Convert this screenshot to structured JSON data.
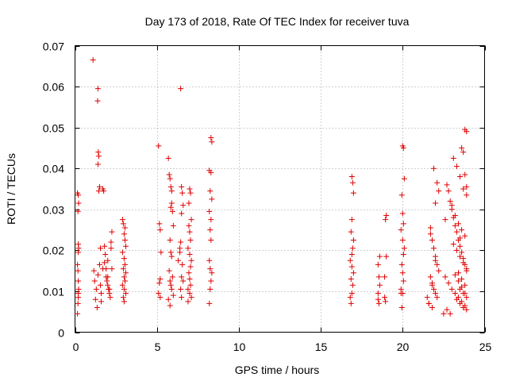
{
  "chart_data": {
    "type": "scatter",
    "title": "Day 173 of 2018, Rate Of TEC Index for receiver tuva",
    "xlabel": "GPS time / hours",
    "ylabel": "ROTI / TECUs",
    "xlim": [
      0,
      25
    ],
    "ylim": [
      0,
      0.07
    ],
    "xticks": [
      0,
      5,
      10,
      15,
      20,
      25
    ],
    "xtick_labels": [
      "0",
      "5",
      "10",
      "15",
      "20",
      "25"
    ],
    "yticks": [
      0,
      0.01,
      0.02,
      0.03,
      0.04,
      0.05,
      0.06,
      0.07
    ],
    "ytick_labels": [
      "0",
      "0.01",
      "0.02",
      "0.03",
      "0.04",
      "0.05",
      "0.06",
      "0.07"
    ],
    "grid": true,
    "marker": "+",
    "marker_color": "#e00000",
    "series": [
      {
        "name": "ROTI",
        "x": [
          0.15,
          0.18,
          0.2,
          0.22,
          0.2,
          0.18,
          0.15,
          0.2,
          0.22,
          0.2,
          0.18,
          0.22,
          0.2,
          0.15,
          0.2,
          1.1,
          1.15,
          1.2,
          1.3,
          1.25,
          1.35,
          1.4,
          1.38,
          1.42,
          1.45,
          1.4,
          1.5,
          1.45,
          1.5,
          1.4,
          1.55,
          1.6,
          1.7,
          1.75,
          1.8,
          1.85,
          1.8,
          1.9,
          2.0,
          1.95,
          2.0,
          2.05,
          2.1,
          2.15,
          2.2,
          2.2,
          2.25,
          2.1,
          1.9,
          1.7,
          1.6,
          1.55,
          2.0,
          2.25,
          2.9,
          2.95,
          3.0,
          3.05,
          3.1,
          2.9,
          3.0,
          3.05,
          2.95,
          3.1,
          3.0,
          3.05,
          2.9,
          3.0,
          3.1,
          2.95,
          3.0,
          3.05,
          5.1,
          5.15,
          5.2,
          5.25,
          5.2,
          5.15,
          5.1,
          5.2,
          5.7,
          5.75,
          5.8,
          5.85,
          5.9,
          5.95,
          6.0,
          5.8,
          5.85,
          5.9,
          5.75,
          5.95,
          5.8,
          5.85,
          5.9,
          6.0,
          5.7,
          5.8,
          5.9,
          5.85,
          6.3,
          6.4,
          6.45,
          6.5,
          6.55,
          6.6,
          6.5,
          6.45,
          6.4,
          6.55,
          6.5,
          6.6,
          6.45,
          6.5,
          6.9,
          6.95,
          7.0,
          7.05,
          7.1,
          6.95,
          7.0,
          7.05,
          6.9,
          7.0,
          7.1,
          7.05,
          6.95,
          7.0,
          7.05,
          6.9,
          7.0,
          7.1,
          8.2,
          8.25,
          8.3,
          8.35,
          8.2,
          8.3,
          8.25,
          8.35,
          8.2,
          8.3,
          8.25,
          8.3,
          8.2,
          8.35,
          8.3,
          8.25,
          16.8,
          16.85,
          16.9,
          16.95,
          17.0,
          16.9,
          16.85,
          17.0,
          16.95,
          16.9,
          16.8,
          16.9,
          17.0,
          16.85,
          16.95,
          16.9,
          18.5,
          18.55,
          18.6,
          18.5,
          18.55,
          18.6,
          18.5,
          18.9,
          18.95,
          19.0,
          18.95,
          19.0,
          18.9,
          19.9,
          19.95,
          20.0,
          20.05,
          20.1,
          19.95,
          20.0,
          20.05,
          19.9,
          20.0,
          20.1,
          20.05,
          19.95,
          20.0,
          20.05,
          19.9,
          20.0,
          21.5,
          21.6,
          21.7,
          21.8,
          21.9,
          22.0,
          22.1,
          22.2,
          21.7,
          21.8,
          21.9,
          22.0,
          22.1,
          21.6,
          21.8,
          22.0,
          22.2,
          21.9,
          22.1,
          21.7,
          22.0,
          21.8,
          22.5,
          22.6,
          22.7,
          22.8,
          22.9,
          23.0,
          23.1,
          23.2,
          23.3,
          23.4,
          23.5,
          23.6,
          23.7,
          23.8,
          23.9,
          22.6,
          22.8,
          23.0,
          23.2,
          23.4,
          23.6,
          23.8,
          22.7,
          22.9,
          23.1,
          23.3,
          23.5,
          23.7,
          23.9,
          23.0,
          23.2,
          23.4,
          23.6,
          23.8,
          23.1,
          23.3,
          23.5,
          23.7,
          23.9,
          23.2,
          23.4,
          23.6,
          23.8,
          23.3,
          23.5,
          23.7,
          23.9,
          23.4,
          23.6,
          23.8,
          23.5,
          23.7,
          23.9,
          23.8,
          23.9,
          23.6,
          23.7,
          23.8,
          23.9,
          23.5
        ],
        "y": [
          0.0045,
          0.007,
          0.0095,
          0.0105,
          0.0125,
          0.015,
          0.0165,
          0.0195,
          0.0205,
          0.0215,
          0.0295,
          0.0315,
          0.0335,
          0.034,
          0.0085,
          0.0665,
          0.015,
          0.0125,
          0.0105,
          0.008,
          0.006,
          0.0595,
          0.0565,
          0.044,
          0.043,
          0.041,
          0.0355,
          0.0345,
          0.0165,
          0.014,
          0.0115,
          0.0095,
          0.035,
          0.0345,
          0.021,
          0.019,
          0.017,
          0.0155,
          0.0135,
          0.0125,
          0.0115,
          0.0105,
          0.0095,
          0.0085,
          0.0205,
          0.022,
          0.0245,
          0.0105,
          0.0135,
          0.0155,
          0.0075,
          0.0205,
          0.0175,
          0.0155,
          0.0275,
          0.0265,
          0.024,
          0.0225,
          0.021,
          0.0195,
          0.018,
          0.0165,
          0.0155,
          0.0145,
          0.0135,
          0.0125,
          0.0115,
          0.0105,
          0.0095,
          0.0085,
          0.0075,
          0.0255,
          0.0455,
          0.0265,
          0.025,
          0.0195,
          0.013,
          0.012,
          0.0095,
          0.0085,
          0.0425,
          0.0385,
          0.0375,
          0.0355,
          0.0315,
          0.0295,
          0.026,
          0.0225,
          0.0195,
          0.0185,
          0.015,
          0.0135,
          0.0125,
          0.0115,
          0.0105,
          0.009,
          0.008,
          0.0065,
          0.0345,
          0.0305,
          0.0175,
          0.0205,
          0.0595,
          0.0355,
          0.034,
          0.031,
          0.029,
          0.022,
          0.0195,
          0.0165,
          0.0135,
          0.0125,
          0.0105,
          0.0085,
          0.0075,
          0.0315,
          0.035,
          0.034,
          0.0275,
          0.026,
          0.0245,
          0.0225,
          0.0205,
          0.019,
          0.0175,
          0.016,
          0.0145,
          0.013,
          0.0115,
          0.0105,
          0.0095,
          0.0085,
          0.007,
          0.0155,
          0.0475,
          0.0465,
          0.0395,
          0.039,
          0.0345,
          0.0325,
          0.0295,
          0.0275,
          0.025,
          0.0225,
          0.0175,
          0.0145,
          0.0125,
          0.0105,
          0.0085,
          0.007,
          0.038,
          0.0365,
          0.034,
          0.0275,
          0.0245,
          0.0225,
          0.0205,
          0.019,
          0.0175,
          0.016,
          0.0145,
          0.013,
          0.0115,
          0.0095,
          0.008,
          0.007,
          0.0185,
          0.0165,
          0.0135,
          0.0115,
          0.0095,
          0.0085,
          0.0075,
          0.0285,
          0.0275,
          0.0185,
          0.0135,
          0.0095,
          0.006,
          0.0455,
          0.045,
          0.0375,
          0.0335,
          0.029,
          0.0265,
          0.025,
          0.0225,
          0.0205,
          0.019,
          0.0165,
          0.0145,
          0.0125,
          0.0105,
          0.0095,
          0.0085,
          0.007,
          0.024,
          0.0225,
          0.0205,
          0.0185,
          0.0165,
          0.015,
          0.0135,
          0.012,
          0.0105,
          0.0095,
          0.0085,
          0.007,
          0.006,
          0.0315,
          0.0345,
          0.04,
          0.0365,
          0.0255,
          0.0175,
          0.0115,
          0.0045,
          0.0275,
          0.036,
          0.0345,
          0.032,
          0.03,
          0.028,
          0.026,
          0.0245,
          0.0225,
          0.021,
          0.0195,
          0.018,
          0.0165,
          0.015,
          0.0135,
          0.012,
          0.0105,
          0.0095,
          0.0085,
          0.0075,
          0.0065,
          0.0055,
          0.0045,
          0.0425,
          0.0405,
          0.038,
          0.035,
          0.0335,
          0.031,
          0.0285,
          0.0265,
          0.025,
          0.0235,
          0.0215,
          0.02,
          0.0185,
          0.017,
          0.0155,
          0.014,
          0.0125,
          0.011,
          0.0095,
          0.008,
          0.007,
          0.006,
          0.0055,
          0.0145,
          0.013,
          0.0115,
          0.0105,
          0.0095,
          0.0085,
          0.0495,
          0.049,
          0.045,
          0.044,
          0.0385,
          0.0355,
          0.023
        ]
      }
    ]
  }
}
